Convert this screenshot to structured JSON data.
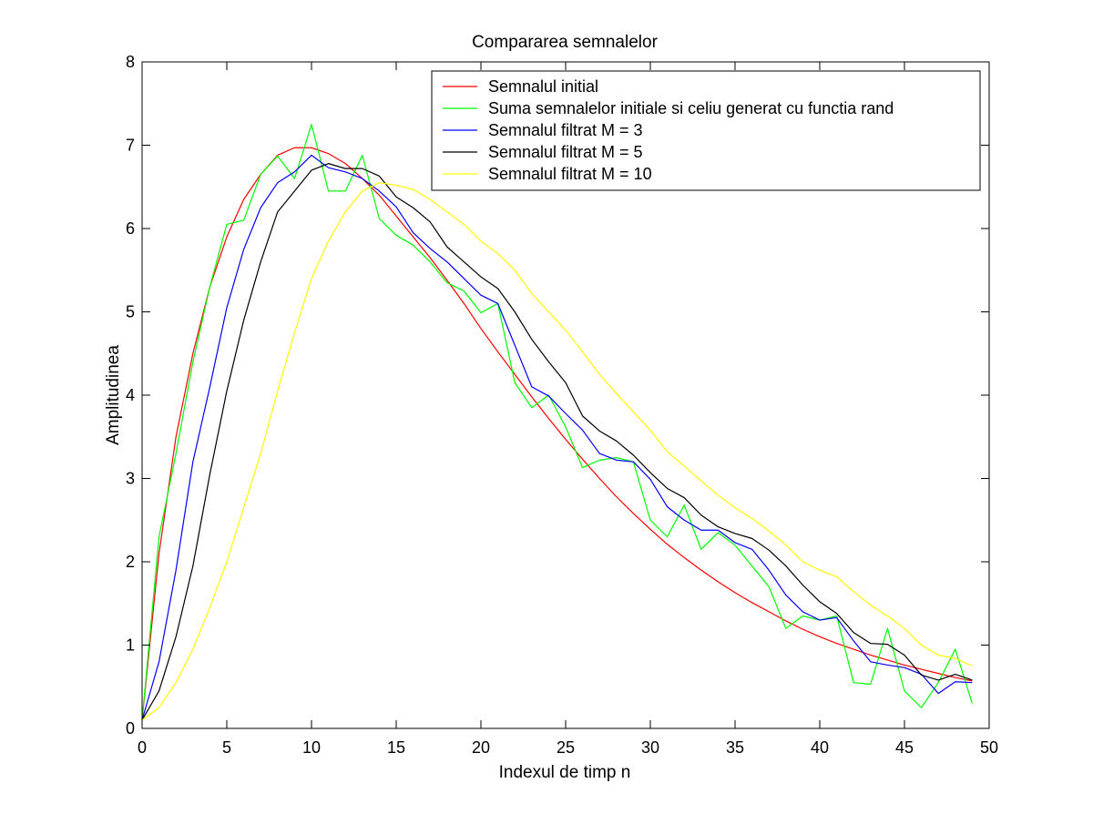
{
  "chart_data": {
    "type": "line",
    "title": "Compararea semnalelor",
    "xlabel": "Indexul de timp n",
    "ylabel": "Amplitudinea",
    "xlim": [
      0,
      50
    ],
    "ylim": [
      0,
      8
    ],
    "xticks": [
      0,
      5,
      10,
      15,
      20,
      25,
      30,
      35,
      40,
      45,
      50
    ],
    "yticks": [
      0,
      1,
      2,
      3,
      4,
      5,
      6,
      7,
      8
    ],
    "grid": false,
    "legend_position": "top-right",
    "x": [
      0,
      1,
      2,
      3,
      4,
      5,
      6,
      7,
      8,
      9,
      10,
      11,
      12,
      13,
      14,
      15,
      16,
      17,
      18,
      19,
      20,
      21,
      22,
      23,
      24,
      25,
      26,
      27,
      28,
      29,
      30,
      31,
      32,
      33,
      34,
      35,
      36,
      37,
      38,
      39,
      40,
      41,
      42,
      43,
      44,
      45,
      46,
      47,
      48,
      49
    ],
    "series": [
      {
        "name": "Semnalul initial",
        "color": "#ff0000",
        "values": [
          0.1,
          2.1,
          3.5,
          4.5,
          5.3,
          5.9,
          6.35,
          6.65,
          6.88,
          6.97,
          6.97,
          6.9,
          6.78,
          6.6,
          6.4,
          6.15,
          5.9,
          5.65,
          5.38,
          5.1,
          4.8,
          4.52,
          4.25,
          3.98,
          3.72,
          3.47,
          3.23,
          3.0,
          2.78,
          2.58,
          2.39,
          2.21,
          2.05,
          1.9,
          1.76,
          1.63,
          1.51,
          1.4,
          1.29,
          1.19,
          1.1,
          1.02,
          0.95,
          0.88,
          0.82,
          0.76,
          0.71,
          0.66,
          0.61,
          0.57
        ]
      },
      {
        "name": "Suma semnalelor initiale si celiu generat cu functia rand",
        "color": "#00ff00",
        "values": [
          0.1,
          2.3,
          3.3,
          4.4,
          5.3,
          6.05,
          6.1,
          6.65,
          6.87,
          6.6,
          7.25,
          6.45,
          6.45,
          6.88,
          6.12,
          5.92,
          5.8,
          5.6,
          5.35,
          5.25,
          4.99,
          5.1,
          4.15,
          3.85,
          4.0,
          3.62,
          3.13,
          3.22,
          3.25,
          3.2,
          2.5,
          2.3,
          2.68,
          2.15,
          2.35,
          2.2,
          1.95,
          1.7,
          1.2,
          1.35,
          1.3,
          1.35,
          0.55,
          0.53,
          1.2,
          0.45,
          0.25,
          0.55,
          0.95,
          0.3
        ]
      },
      {
        "name": "Semnalul filtrat M = 3",
        "color": "#0000ff",
        "values": [
          0.1,
          0.8,
          1.9,
          3.2,
          4.1,
          5.05,
          5.75,
          6.25,
          6.55,
          6.68,
          6.88,
          6.73,
          6.68,
          6.6,
          6.45,
          6.26,
          5.95,
          5.76,
          5.6,
          5.4,
          5.2,
          5.1,
          4.6,
          4.1,
          3.99,
          3.78,
          3.58,
          3.3,
          3.22,
          3.2,
          2.99,
          2.66,
          2.5,
          2.38,
          2.38,
          2.23,
          2.15,
          1.9,
          1.6,
          1.4,
          1.3,
          1.33,
          1.05,
          0.8,
          0.76,
          0.73,
          0.65,
          0.42,
          0.56,
          0.55
        ]
      },
      {
        "name": "Semnalul filtrat M = 5",
        "color": "#000000",
        "values": [
          0.1,
          0.45,
          1.1,
          1.95,
          3.05,
          4.05,
          4.9,
          5.6,
          6.2,
          6.45,
          6.7,
          6.78,
          6.72,
          6.72,
          6.63,
          6.38,
          6.25,
          6.08,
          5.78,
          5.6,
          5.42,
          5.28,
          5.0,
          4.67,
          4.4,
          4.15,
          3.75,
          3.57,
          3.45,
          3.28,
          3.07,
          2.88,
          2.77,
          2.56,
          2.42,
          2.34,
          2.28,
          2.14,
          1.95,
          1.72,
          1.52,
          1.38,
          1.15,
          1.02,
          1.01,
          0.88,
          0.64,
          0.58,
          0.65,
          0.58
        ]
      },
      {
        "name": "Semnalul filtrat M = 10",
        "color": "#ffff00",
        "values": [
          0.1,
          0.25,
          0.55,
          0.95,
          1.45,
          2.0,
          2.65,
          3.3,
          4.05,
          4.75,
          5.4,
          5.85,
          6.2,
          6.45,
          6.55,
          6.52,
          6.47,
          6.35,
          6.2,
          6.05,
          5.85,
          5.7,
          5.5,
          5.22,
          5.0,
          4.78,
          4.52,
          4.25,
          4.02,
          3.8,
          3.58,
          3.32,
          3.15,
          2.97,
          2.8,
          2.65,
          2.52,
          2.37,
          2.2,
          2.0,
          1.9,
          1.82,
          1.64,
          1.48,
          1.35,
          1.2,
          1.0,
          0.88,
          0.84,
          0.75
        ]
      }
    ]
  }
}
